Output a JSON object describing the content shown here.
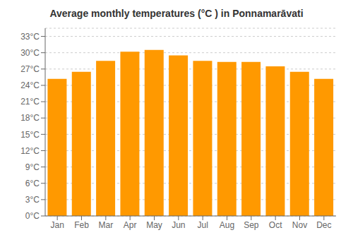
{
  "chart_data": {
    "type": "bar",
    "title": "Average monthly temperatures (°C ) in Ponnamarāvati",
    "categories": [
      "Jan",
      "Feb",
      "Mar",
      "Apr",
      "May",
      "Jun",
      "Jul",
      "Aug",
      "Sep",
      "Oct",
      "Nov",
      "Dec"
    ],
    "values": [
      25.2,
      26.5,
      28.5,
      30.2,
      30.5,
      29.5,
      28.5,
      28.3,
      28.3,
      27.5,
      26.5,
      25.2
    ],
    "color": "#FF9900",
    "ylim": [
      0,
      34.5
    ],
    "yticks": [
      {
        "value": 0,
        "label": "0°C"
      },
      {
        "value": 3,
        "label": "3°C"
      },
      {
        "value": 6,
        "label": "6°C"
      },
      {
        "value": 9,
        "label": "9°C"
      },
      {
        "value": 12,
        "label": "12°C"
      },
      {
        "value": 15,
        "label": "15°C"
      },
      {
        "value": 18,
        "label": "18°C"
      },
      {
        "value": 21,
        "label": "21°C"
      },
      {
        "value": 24,
        "label": "24°C"
      },
      {
        "value": 27,
        "label": "27°C"
      },
      {
        "value": 30,
        "label": "30°C"
      },
      {
        "value": 33,
        "label": "33°C"
      }
    ],
    "grid": true
  }
}
